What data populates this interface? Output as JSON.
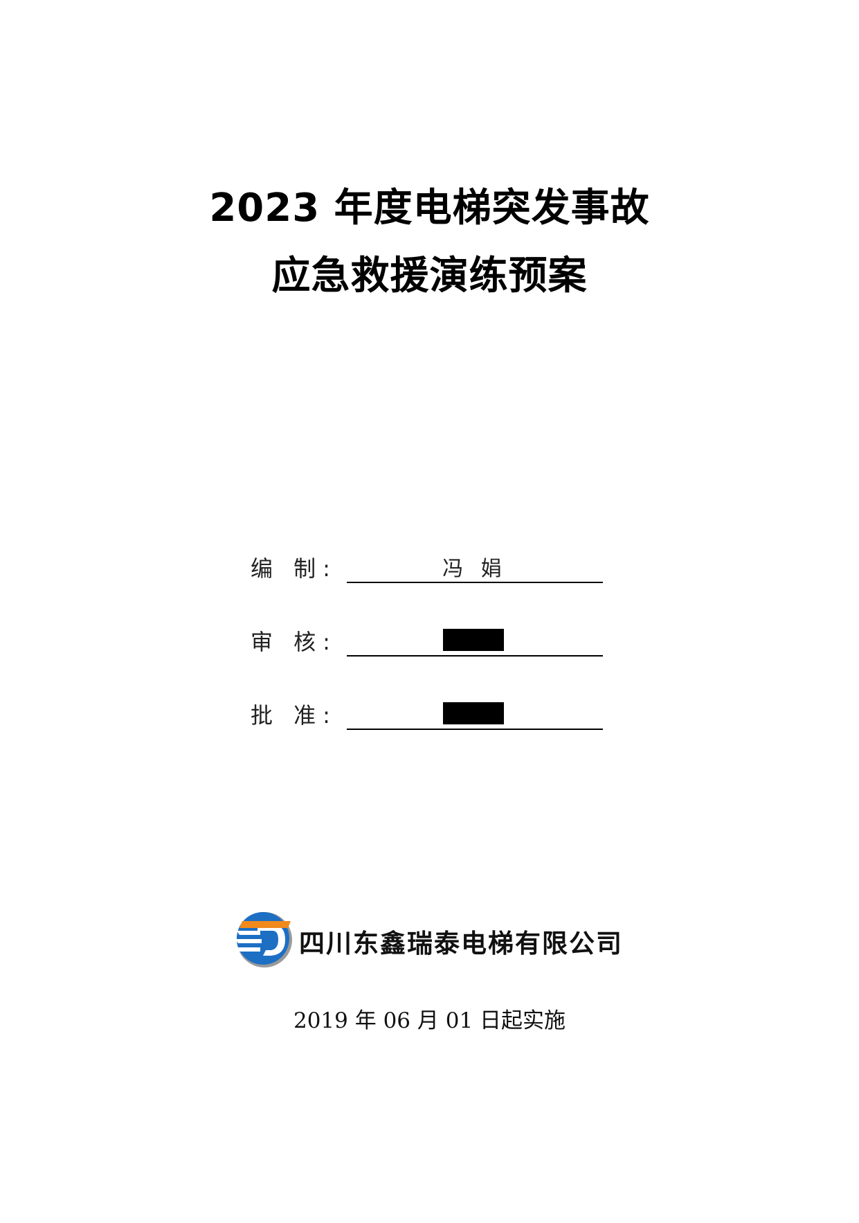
{
  "document": {
    "title_line1": "2023 年度电梯突发事故",
    "title_line2": "应急救援演练预案"
  },
  "signoff": {
    "prepared_label": "编 制:",
    "prepared_value": "冯 娟",
    "reviewed_label": "审 核:",
    "approved_label": "批 准:"
  },
  "company": {
    "name": "四川东鑫瑞泰电梯有限公司",
    "logo_icon": "company-logo-icon",
    "logo_colors": {
      "blue": "#1d6fc4",
      "orange": "#f08a1c",
      "gray": "#9a9a9a"
    }
  },
  "effective_date": "2019 年 06 月 01 日起实施"
}
